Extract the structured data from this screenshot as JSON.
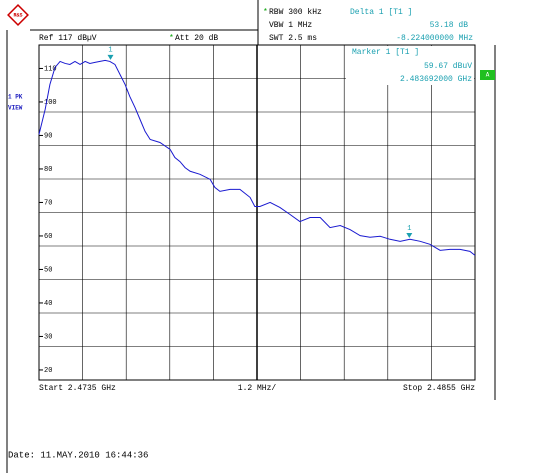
{
  "chart_data": {
    "type": "line",
    "logo": "R&S",
    "rbw_flag": "*",
    "rbw": "RBW 300 kHz",
    "vbw": "VBW 1 MHz",
    "swt": "SWT 2.5 ms",
    "delta_title": "Delta 1 [T1 ]",
    "delta_level": "53.18 dB",
    "delta_freq": "-8.224000000 MHz",
    "ref_level": "Ref 117 dBµV",
    "att_flag": "*",
    "attenuation": "Att 20 dB",
    "marker_title": "Marker 1 [T1 ]",
    "marker_level": "59.67 dBuV",
    "marker_freq": "2.483692000 GHz",
    "trace_mode": "1 PK",
    "trace_view": "VIEW",
    "side_badge": "A",
    "start_label": "Start 2.4735 GHz",
    "span_label": "1.2 MHz/",
    "stop_label": "Stop 2.4855 GHz",
    "date": "Date: 11.MAY.2010  16:44:36",
    "xlim": [
      2.4735,
      2.4855
    ],
    "ylim": [
      17,
      117
    ],
    "yticks": [
      110,
      100,
      90,
      80,
      70,
      60,
      50,
      40,
      30,
      20
    ],
    "grid": true,
    "series": [
      {
        "name": "1 PK",
        "color": "#1a1ad0",
        "x": [
          2.4735,
          2.47367,
          2.4738,
          2.47394,
          2.47408,
          2.47422,
          2.47435,
          2.47449,
          2.47463,
          2.47477,
          2.4749,
          2.47504,
          2.47518,
          2.47532,
          2.47545,
          2.47559,
          2.47573,
          2.47587,
          2.476,
          2.47614,
          2.47628,
          2.47642,
          2.47656,
          2.47683,
          2.47711,
          2.47724,
          2.47738,
          2.47752,
          2.47766,
          2.47793,
          2.47821,
          2.47834,
          2.47848,
          2.47876,
          2.47903,
          2.47931,
          2.47944,
          2.47958,
          2.47986,
          2.48013,
          2.48041,
          2.48068,
          2.48096,
          2.48124,
          2.48151,
          2.48179,
          2.48206,
          2.48234,
          2.48261,
          2.48289,
          2.48316,
          2.48344,
          2.48371,
          2.48399,
          2.48426,
          2.48454,
          2.48481,
          2.48509,
          2.48536,
          2.4855
        ],
        "values": [
          90.3,
          97.8,
          105.2,
          110.3,
          112.1,
          111.5,
          111.2,
          112.1,
          111.2,
          112.1,
          111.5,
          111.8,
          112.1,
          112.4,
          112.1,
          111.2,
          108.2,
          105.2,
          101.6,
          98.4,
          94.8,
          91.2,
          88.8,
          87.9,
          85.8,
          83.4,
          82.2,
          80.4,
          79.3,
          78.4,
          76.9,
          74.5,
          73.3,
          73.9,
          73.9,
          71.5,
          68.8,
          68.8,
          70.0,
          68.5,
          66.4,
          64.3,
          65.5,
          65.5,
          62.5,
          63.1,
          61.9,
          60.1,
          59.6,
          59.9,
          59.0,
          58.4,
          59.0,
          58.4,
          57.5,
          55.7,
          56.0,
          56.0,
          55.4,
          54.2
        ]
      }
    ],
    "markers": [
      {
        "label": "1",
        "x": 2.475468,
        "y": 112.85,
        "color": "#1aa0b0"
      },
      {
        "label": "1",
        "x": 2.483692,
        "y": 59.67,
        "color": "#1aa0b0"
      }
    ]
  }
}
